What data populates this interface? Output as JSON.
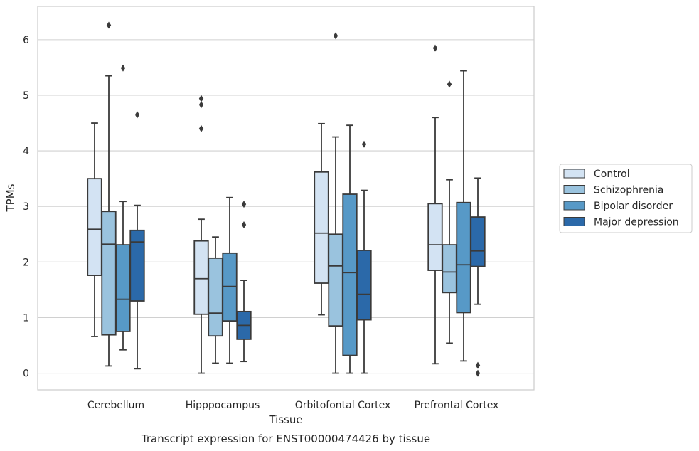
{
  "caption": "Transcript expression for ENST00000474426 by tissue",
  "chart_data": {
    "type": "box",
    "xlabel": "Tissue",
    "ylabel": "TPMs",
    "ylim": [
      -0.3,
      6.6
    ],
    "yticks": [
      0,
      1,
      2,
      3,
      4,
      5,
      6
    ],
    "grid": "horizontal",
    "legend_position": "right",
    "categories": [
      "Cerebellum",
      "Hipppocampus",
      "Orbitofontal Cortex",
      "Prefrontal Cortex"
    ],
    "series": [
      {
        "name": "Control",
        "color": "#d3e3f3",
        "boxes": [
          {
            "whisker_low": 0.66,
            "q1": 1.76,
            "median": 2.59,
            "q3": 3.5,
            "whisker_high": 4.5,
            "outliers": []
          },
          {
            "whisker_low": 0.0,
            "q1": 1.06,
            "median": 1.7,
            "q3": 2.38,
            "whisker_high": 2.77,
            "outliers": [
              4.4,
              4.83,
              4.94
            ]
          },
          {
            "whisker_low": 1.05,
            "q1": 1.62,
            "median": 2.52,
            "q3": 3.62,
            "whisker_high": 4.49,
            "outliers": []
          },
          {
            "whisker_low": 0.17,
            "q1": 1.85,
            "median": 2.31,
            "q3": 3.05,
            "whisker_high": 4.6,
            "outliers": [
              5.85
            ]
          }
        ]
      },
      {
        "name": "Schizophrenia",
        "color": "#9ac3de",
        "boxes": [
          {
            "whisker_low": 0.13,
            "q1": 0.69,
            "median": 2.32,
            "q3": 2.91,
            "whisker_high": 5.35,
            "outliers": [
              6.26
            ]
          },
          {
            "whisker_low": 0.18,
            "q1": 0.67,
            "median": 1.08,
            "q3": 2.07,
            "whisker_high": 2.45,
            "outliers": []
          },
          {
            "whisker_low": 0.0,
            "q1": 0.85,
            "median": 1.93,
            "q3": 2.5,
            "whisker_high": 4.25,
            "outliers": [
              6.07
            ]
          },
          {
            "whisker_low": 0.54,
            "q1": 1.45,
            "median": 1.82,
            "q3": 2.31,
            "whisker_high": 3.48,
            "outliers": [
              5.2
            ]
          }
        ]
      },
      {
        "name": "Bipolar disorder",
        "color": "#5799c7",
        "boxes": [
          {
            "whisker_low": 0.42,
            "q1": 0.75,
            "median": 1.33,
            "q3": 2.31,
            "whisker_high": 3.09,
            "outliers": [
              5.49
            ]
          },
          {
            "whisker_low": 0.18,
            "q1": 0.94,
            "median": 1.56,
            "q3": 2.16,
            "whisker_high": 3.16,
            "outliers": []
          },
          {
            "whisker_low": 0.0,
            "q1": 0.32,
            "median": 1.81,
            "q3": 3.22,
            "whisker_high": 4.46,
            "outliers": []
          },
          {
            "whisker_low": 0.22,
            "q1": 1.09,
            "median": 1.95,
            "q3": 3.07,
            "whisker_high": 5.44,
            "outliers": []
          }
        ]
      },
      {
        "name": "Major depression",
        "color": "#2b69a9",
        "boxes": [
          {
            "whisker_low": 0.08,
            "q1": 1.3,
            "median": 2.36,
            "q3": 2.57,
            "whisker_high": 3.02,
            "outliers": [
              4.65
            ]
          },
          {
            "whisker_low": 0.21,
            "q1": 0.61,
            "median": 0.86,
            "q3": 1.11,
            "whisker_high": 1.67,
            "outliers": [
              2.67,
              3.04
            ]
          },
          {
            "whisker_low": 0.0,
            "q1": 0.96,
            "median": 1.42,
            "q3": 2.21,
            "whisker_high": 3.29,
            "outliers": [
              4.12
            ]
          },
          {
            "whisker_low": 1.24,
            "q1": 1.92,
            "median": 2.2,
            "q3": 2.81,
            "whisker_high": 3.51,
            "outliers": [
              0.0,
              0.14
            ]
          }
        ]
      }
    ]
  }
}
